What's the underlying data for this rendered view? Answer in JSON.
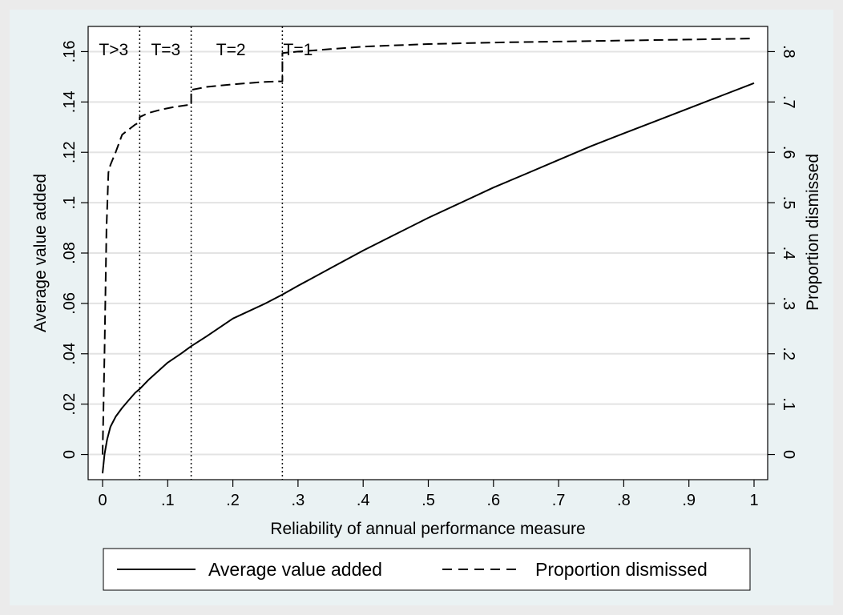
{
  "chart_data": {
    "type": "line",
    "title": "",
    "xlabel": "Reliability of annual performance measure",
    "ylabel": "Average value added",
    "y2label": "Proportion dismissed",
    "xlim": [
      0,
      1
    ],
    "ylim": [
      -0.01,
      0.17
    ],
    "y2lim": [
      -0.05,
      0.85
    ],
    "x_ticks": [
      0,
      0.1,
      0.2,
      0.3,
      0.4,
      0.5,
      0.6,
      0.7,
      0.8,
      0.9,
      1
    ],
    "x_tick_labels": [
      "0",
      ".1",
      ".2",
      ".3",
      ".4",
      ".5",
      ".6",
      ".7",
      ".8",
      ".9",
      "1"
    ],
    "y_ticks": [
      0,
      0.02,
      0.04,
      0.06,
      0.08,
      0.1,
      0.12,
      0.14,
      0.16
    ],
    "y_tick_labels": [
      "0",
      ".02",
      ".04",
      ".06",
      ".08",
      ".1",
      ".12",
      ".14",
      ".16"
    ],
    "y2_ticks": [
      0,
      0.1,
      0.2,
      0.3,
      0.4,
      0.5,
      0.6,
      0.7,
      0.8
    ],
    "y2_tick_labels": [
      "0",
      ".1",
      ".2",
      ".3",
      ".4",
      ".5",
      ".6",
      ".7",
      ".8"
    ],
    "grid": true,
    "legend_position": "bottom",
    "vertical_lines": [
      {
        "x": 0.057
      },
      {
        "x": 0.136
      },
      {
        "x": 0.276
      }
    ],
    "region_labels": [
      {
        "label": "T>3",
        "x": 0.017
      },
      {
        "label": "T=3",
        "x": 0.097
      },
      {
        "label": "T=2",
        "x": 0.197
      },
      {
        "label": "T=1",
        "x": 0.3
      }
    ],
    "series": [
      {
        "name": "Average value added",
        "axis": "left",
        "style": "solid",
        "x": [
          0,
          0.003,
          0.007,
          0.012,
          0.02,
          0.03,
          0.04,
          0.05,
          0.057,
          0.07,
          0.085,
          0.1,
          0.12,
          0.136,
          0.16,
          0.2,
          0.25,
          0.276,
          0.3,
          0.35,
          0.4,
          0.45,
          0.5,
          0.55,
          0.6,
          0.65,
          0.7,
          0.75,
          0.8,
          0.85,
          0.9,
          0.95,
          1.0
        ],
        "values": [
          -0.0075,
          0.0,
          0.006,
          0.011,
          0.015,
          0.0185,
          0.0215,
          0.0245,
          0.026,
          0.0295,
          0.033,
          0.0365,
          0.04,
          0.043,
          0.047,
          0.054,
          0.06,
          0.0635,
          0.067,
          0.074,
          0.081,
          0.0875,
          0.094,
          0.1,
          0.106,
          0.1115,
          0.117,
          0.1225,
          0.1275,
          0.1325,
          0.1375,
          0.1425,
          0.1475
        ]
      },
      {
        "name": "Proportion dismissed",
        "axis": "right",
        "style": "dashed",
        "x": [
          0,
          0.003,
          0.006,
          0.009,
          0.012,
          0.02,
          0.03,
          0.04,
          0.05,
          0.057,
          0.057,
          0.07,
          0.09,
          0.11,
          0.136,
          0.136,
          0.16,
          0.2,
          0.25,
          0.276,
          0.276,
          0.3,
          0.35,
          0.4,
          0.5,
          0.6,
          0.7,
          0.8,
          0.9,
          1.0
        ],
        "values": [
          0.0,
          0.2,
          0.45,
          0.56,
          0.575,
          0.6,
          0.635,
          0.645,
          0.655,
          0.66,
          0.67,
          0.678,
          0.685,
          0.69,
          0.695,
          0.724,
          0.73,
          0.735,
          0.74,
          0.741,
          0.797,
          0.8,
          0.805,
          0.81,
          0.815,
          0.818,
          0.82,
          0.822,
          0.824,
          0.826
        ]
      }
    ]
  }
}
